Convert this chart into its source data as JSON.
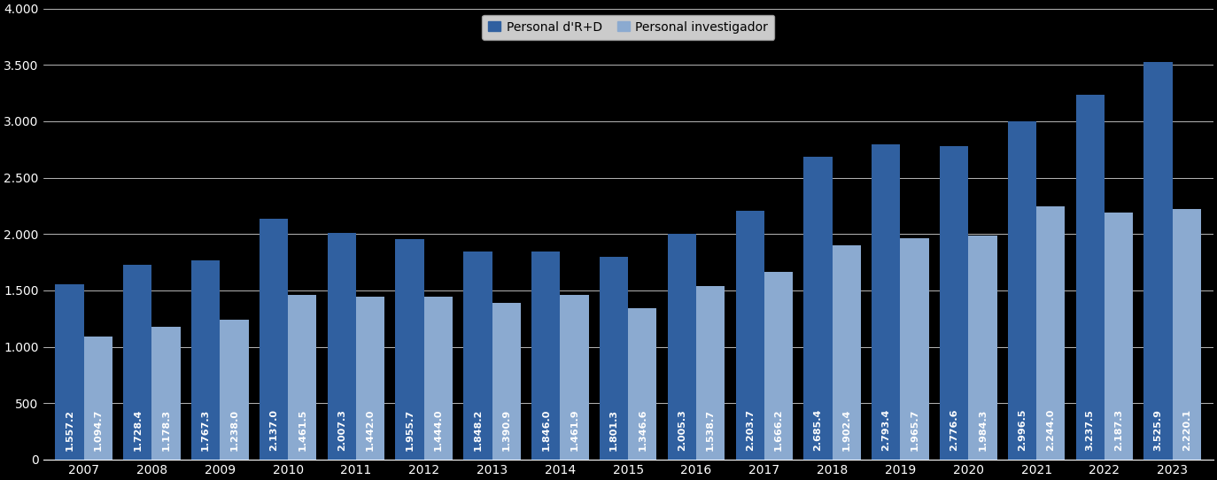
{
  "years": [
    2007,
    2008,
    2009,
    2010,
    2011,
    2012,
    2013,
    2014,
    2015,
    2016,
    2017,
    2018,
    2019,
    2020,
    2021,
    2022,
    2023
  ],
  "personal_rd": [
    1557.2,
    1728.4,
    1767.3,
    2137.0,
    2007.3,
    1955.7,
    1848.2,
    1846.0,
    1801.3,
    2005.3,
    2203.7,
    2685.4,
    2793.4,
    2776.6,
    2996.5,
    3237.5,
    3525.9
  ],
  "personal_inv": [
    1094.7,
    1178.3,
    1238.0,
    1461.5,
    1442.0,
    1444.0,
    1390.9,
    1461.9,
    1346.6,
    1538.7,
    1666.2,
    1902.4,
    1965.7,
    1984.3,
    2244.0,
    2187.3,
    2220.1
  ],
  "color_rd": "#3060A0",
  "color_inv": "#8BAAD0",
  "background": "#000000",
  "text_color": "#ffffff",
  "grid_color": "#ffffff",
  "label_rd": "Personal d'R+D",
  "label_inv": "Personal investigador",
  "ylim": [
    0,
    4000
  ],
  "yticks": [
    0,
    500,
    1000,
    1500,
    2000,
    2500,
    3000,
    3500,
    4000
  ],
  "bar_width": 0.42,
  "fontsize_ticks": 10,
  "fontsize_legend": 10,
  "fontsize_bar_label": 8.0
}
